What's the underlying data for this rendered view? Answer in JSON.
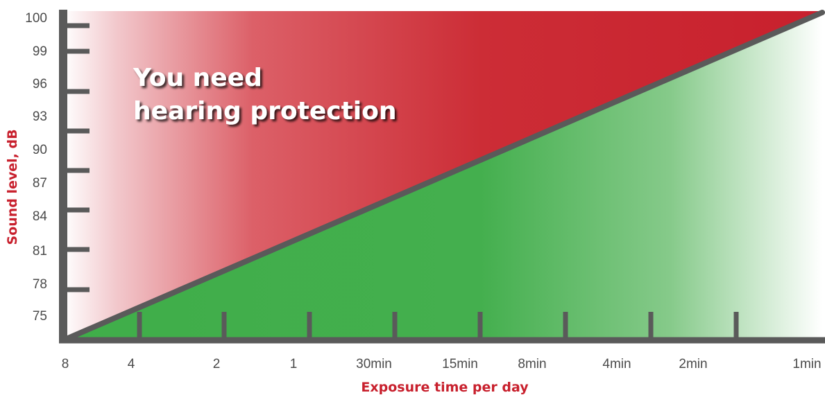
{
  "chart_data": {
    "type": "area",
    "title": "",
    "xlabel": "Exposure time per day",
    "ylabel": "Sound level, dB",
    "x_tick_labels": [
      "8",
      "4",
      "2",
      "1",
      "30min",
      "15min",
      "8min",
      "4min",
      "2min",
      "1min"
    ],
    "y_tick_labels": [
      "75",
      "78",
      "81",
      "84",
      "87",
      "90",
      "93",
      "96",
      "99",
      "100"
    ],
    "annotation": [
      "You need",
      "hearing protection"
    ],
    "regions": [
      {
        "label": "You need hearing protection",
        "position": "above line",
        "color": "#c8202d"
      },
      {
        "label": "",
        "position": "below line",
        "color": "#3fae49"
      }
    ],
    "boundary_line": {
      "from": {
        "x": "8",
        "y": "75"
      },
      "to": {
        "x": "1min",
        "y": "100"
      },
      "color": "#5a5a5a"
    },
    "grid": false,
    "legend": "none"
  }
}
